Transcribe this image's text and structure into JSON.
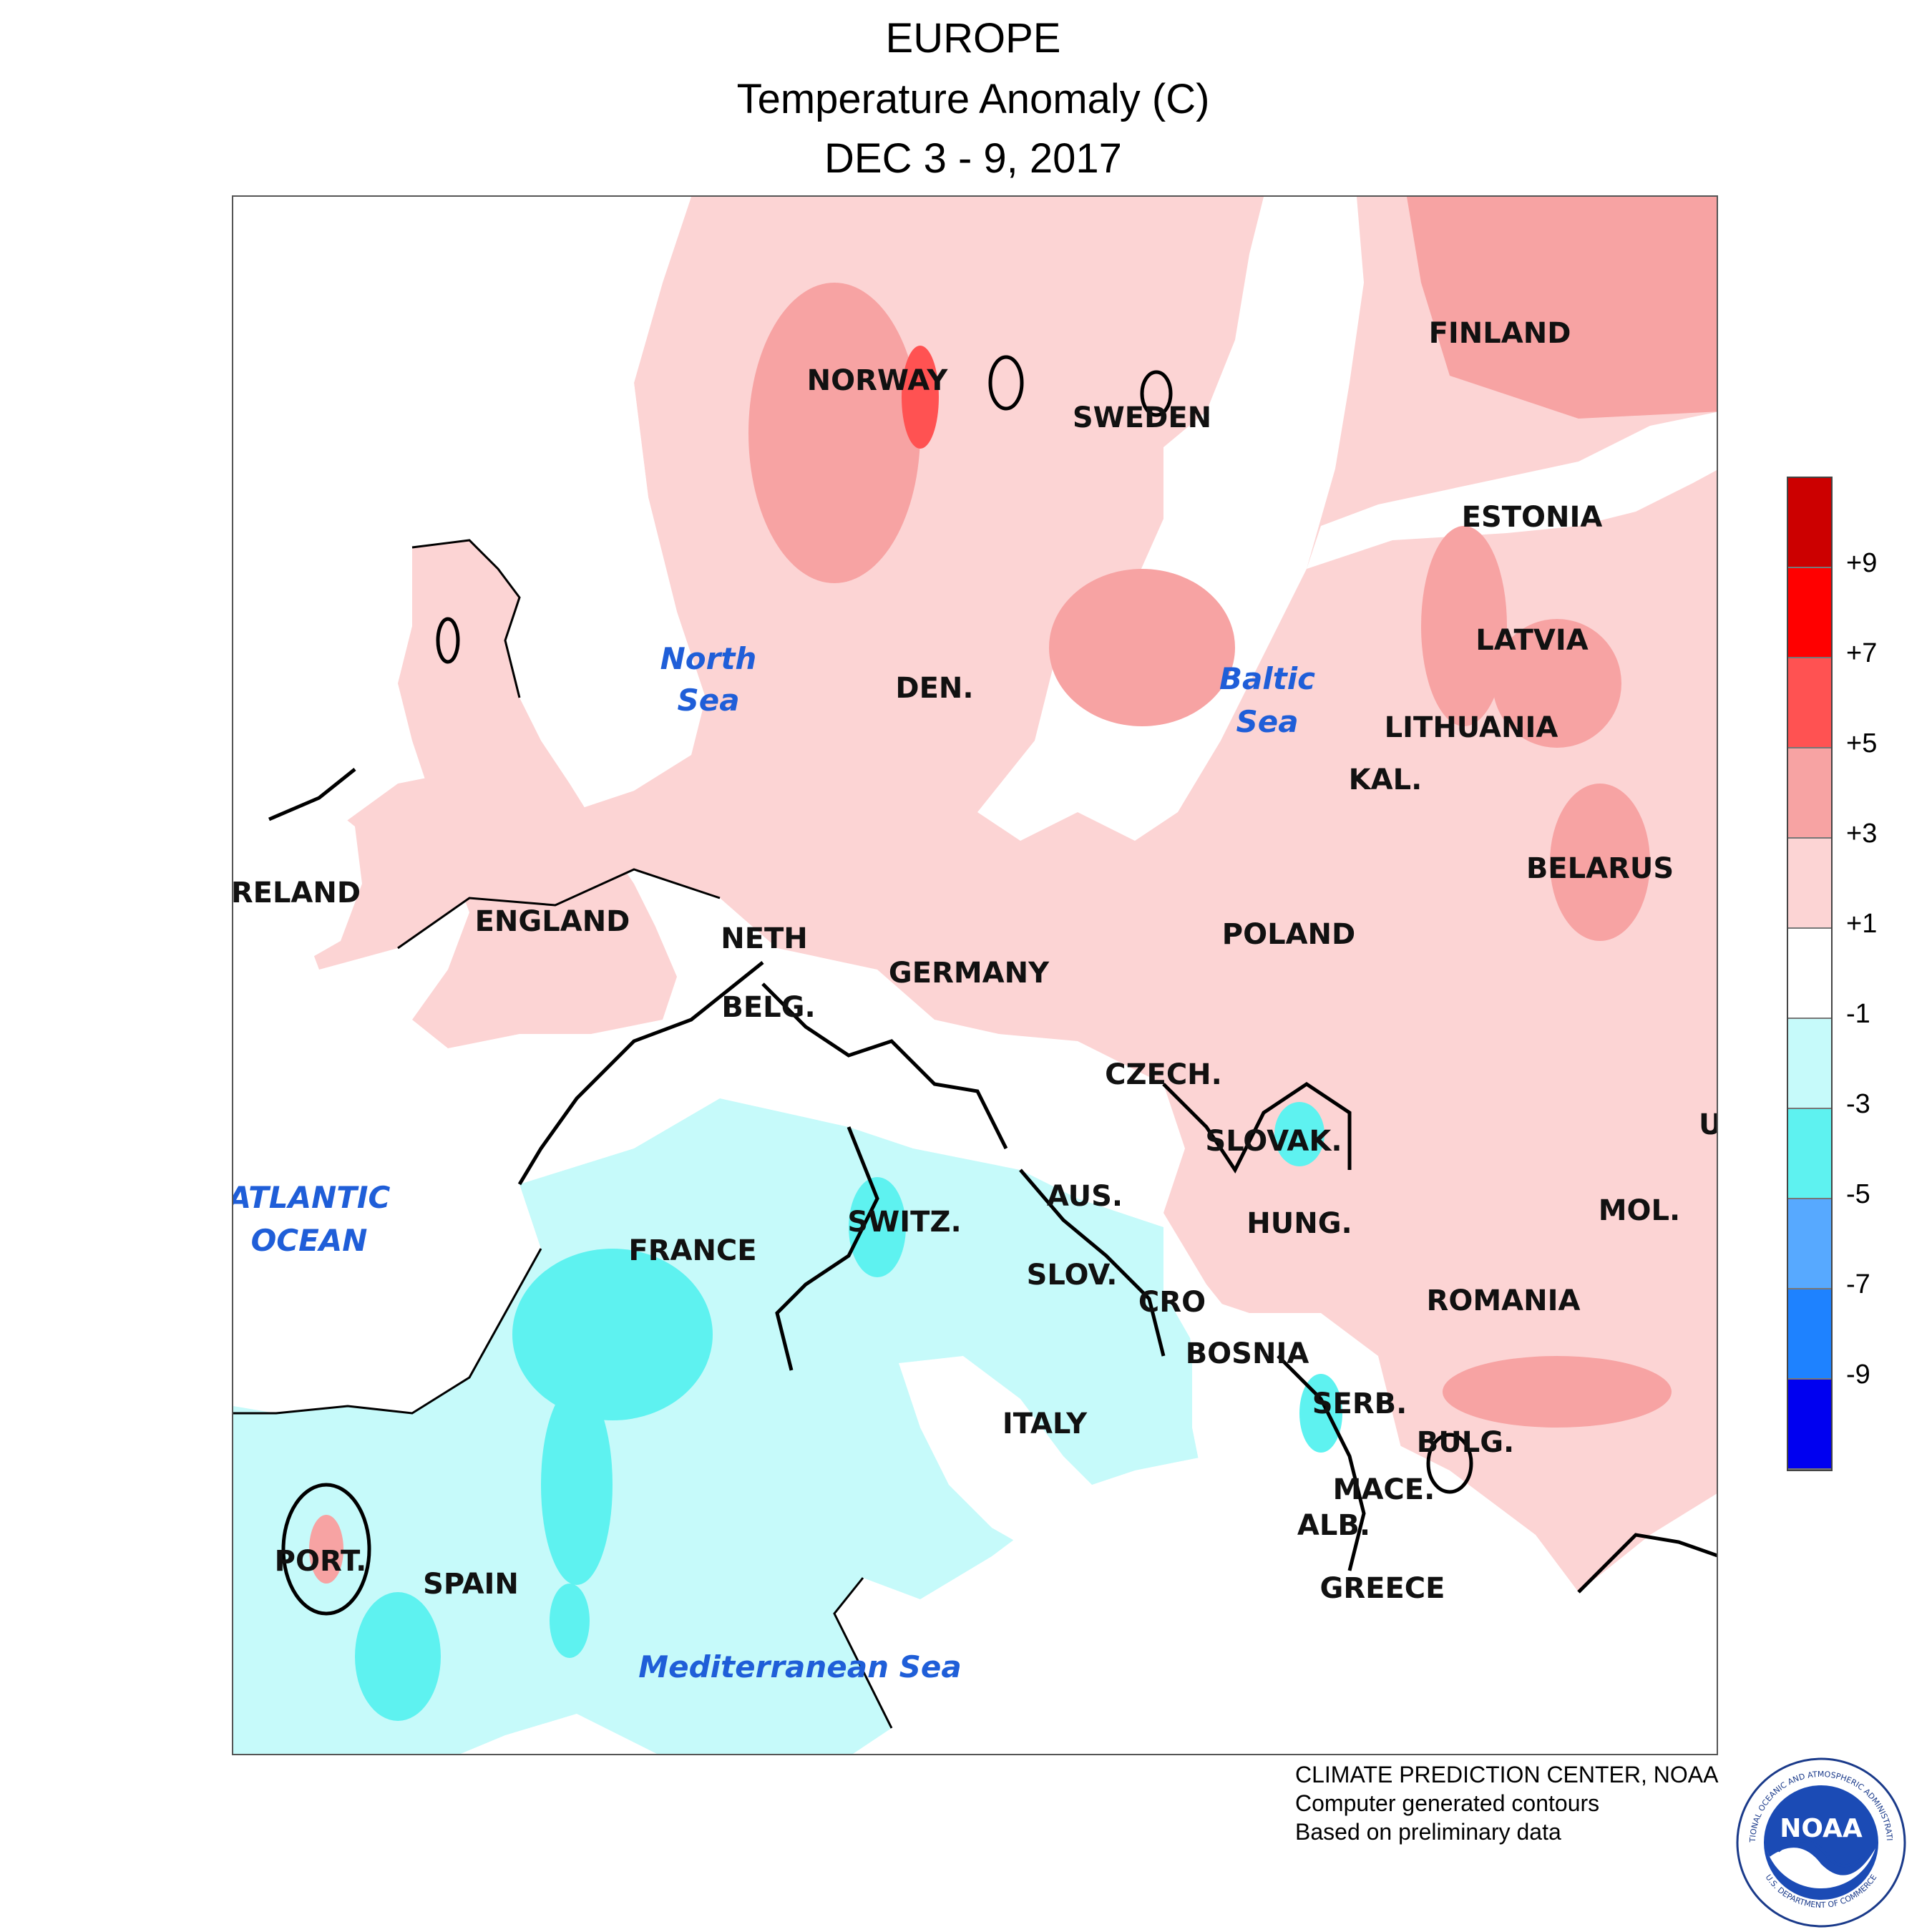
{
  "title": {
    "region": "EUROPE",
    "variable": "Temperature Anomaly (C)",
    "period": "DEC 3 - 9, 2017"
  },
  "map": {
    "sea_labels": {
      "north_sea_line1": "North",
      "north_sea_line2": "Sea",
      "baltic_sea_line1": "Baltic",
      "baltic_sea_line2": "Sea",
      "atlantic_line1": "ATLANTIC",
      "atlantic_line2": "OCEAN",
      "mediterranean": "Mediterranean Sea"
    },
    "country_labels": {
      "norway": "NORWAY",
      "sweden": "SWEDEN",
      "finland": "FINLAND",
      "estonia": "ESTONIA",
      "latvia": "LATVIA",
      "lithuania": "LITHUANIA",
      "kal": "KAL.",
      "belarus": "BELARUS",
      "poland": "POLAND",
      "den": "DEN.",
      "ireland": "IRELAND",
      "england": "ENGLAND",
      "neth": "NETH",
      "belg": "BELG.",
      "germany": "GERMANY",
      "czech": "CZECH.",
      "slovak": "SLOVAK.",
      "aus": "AUS.",
      "hung": "HUNG.",
      "switz": "SWITZ.",
      "france": "FRANCE",
      "slov": "SLOV.",
      "cro": "CRO",
      "bosnia": "BOSNIA",
      "serb": "SERB.",
      "romania": "ROMANIA",
      "mol": "MOL.",
      "uk": "UK",
      "bulg": "BULG.",
      "mace": "MACE.",
      "alb": "ALB.",
      "greece": "GREECE",
      "italy": "ITALY",
      "spain": "SPAIN",
      "port": "PORT."
    },
    "anomaly_colors": {
      "above_9": "#cc0000",
      "7_to_9": "#ff0000",
      "5_to_7": "#ff5252",
      "3_to_5": "#f7a3a3",
      "1_to_3": "#fcd4d4",
      "minus1_to_1": "#ffffff",
      "minus3_to_minus1": "#c6fafa",
      "minus5_to_minus3": "#5ef2f0",
      "minus7_to_minus5": "#57a9ff",
      "minus9_to_minus7": "#1e82ff",
      "below_minus9": "#0000f0"
    }
  },
  "legend": {
    "colors": [
      "#cc0000",
      "#ff0000",
      "#ff5252",
      "#f7a3a3",
      "#fcd4d4",
      "#ffffff",
      "#c6fafa",
      "#5ef2f0",
      "#57a9ff",
      "#1e82ff",
      "#0000f0"
    ],
    "ticks": [
      "+9",
      "+7",
      "+5",
      "+3",
      "+1",
      "-1",
      "-3",
      "-5",
      "-7",
      "-9"
    ]
  },
  "credits": {
    "line1": "CLIMATE PREDICTION CENTER, NOAA",
    "line2": "Computer generated contours",
    "line3": "Based on preliminary data"
  },
  "logo": {
    "text": "NOAA",
    "ring_top": "NATIONAL OCEANIC AND ATMOSPHERIC ADMINISTRATION",
    "ring_bottom": "U.S. DEPARTMENT OF COMMERCE"
  }
}
